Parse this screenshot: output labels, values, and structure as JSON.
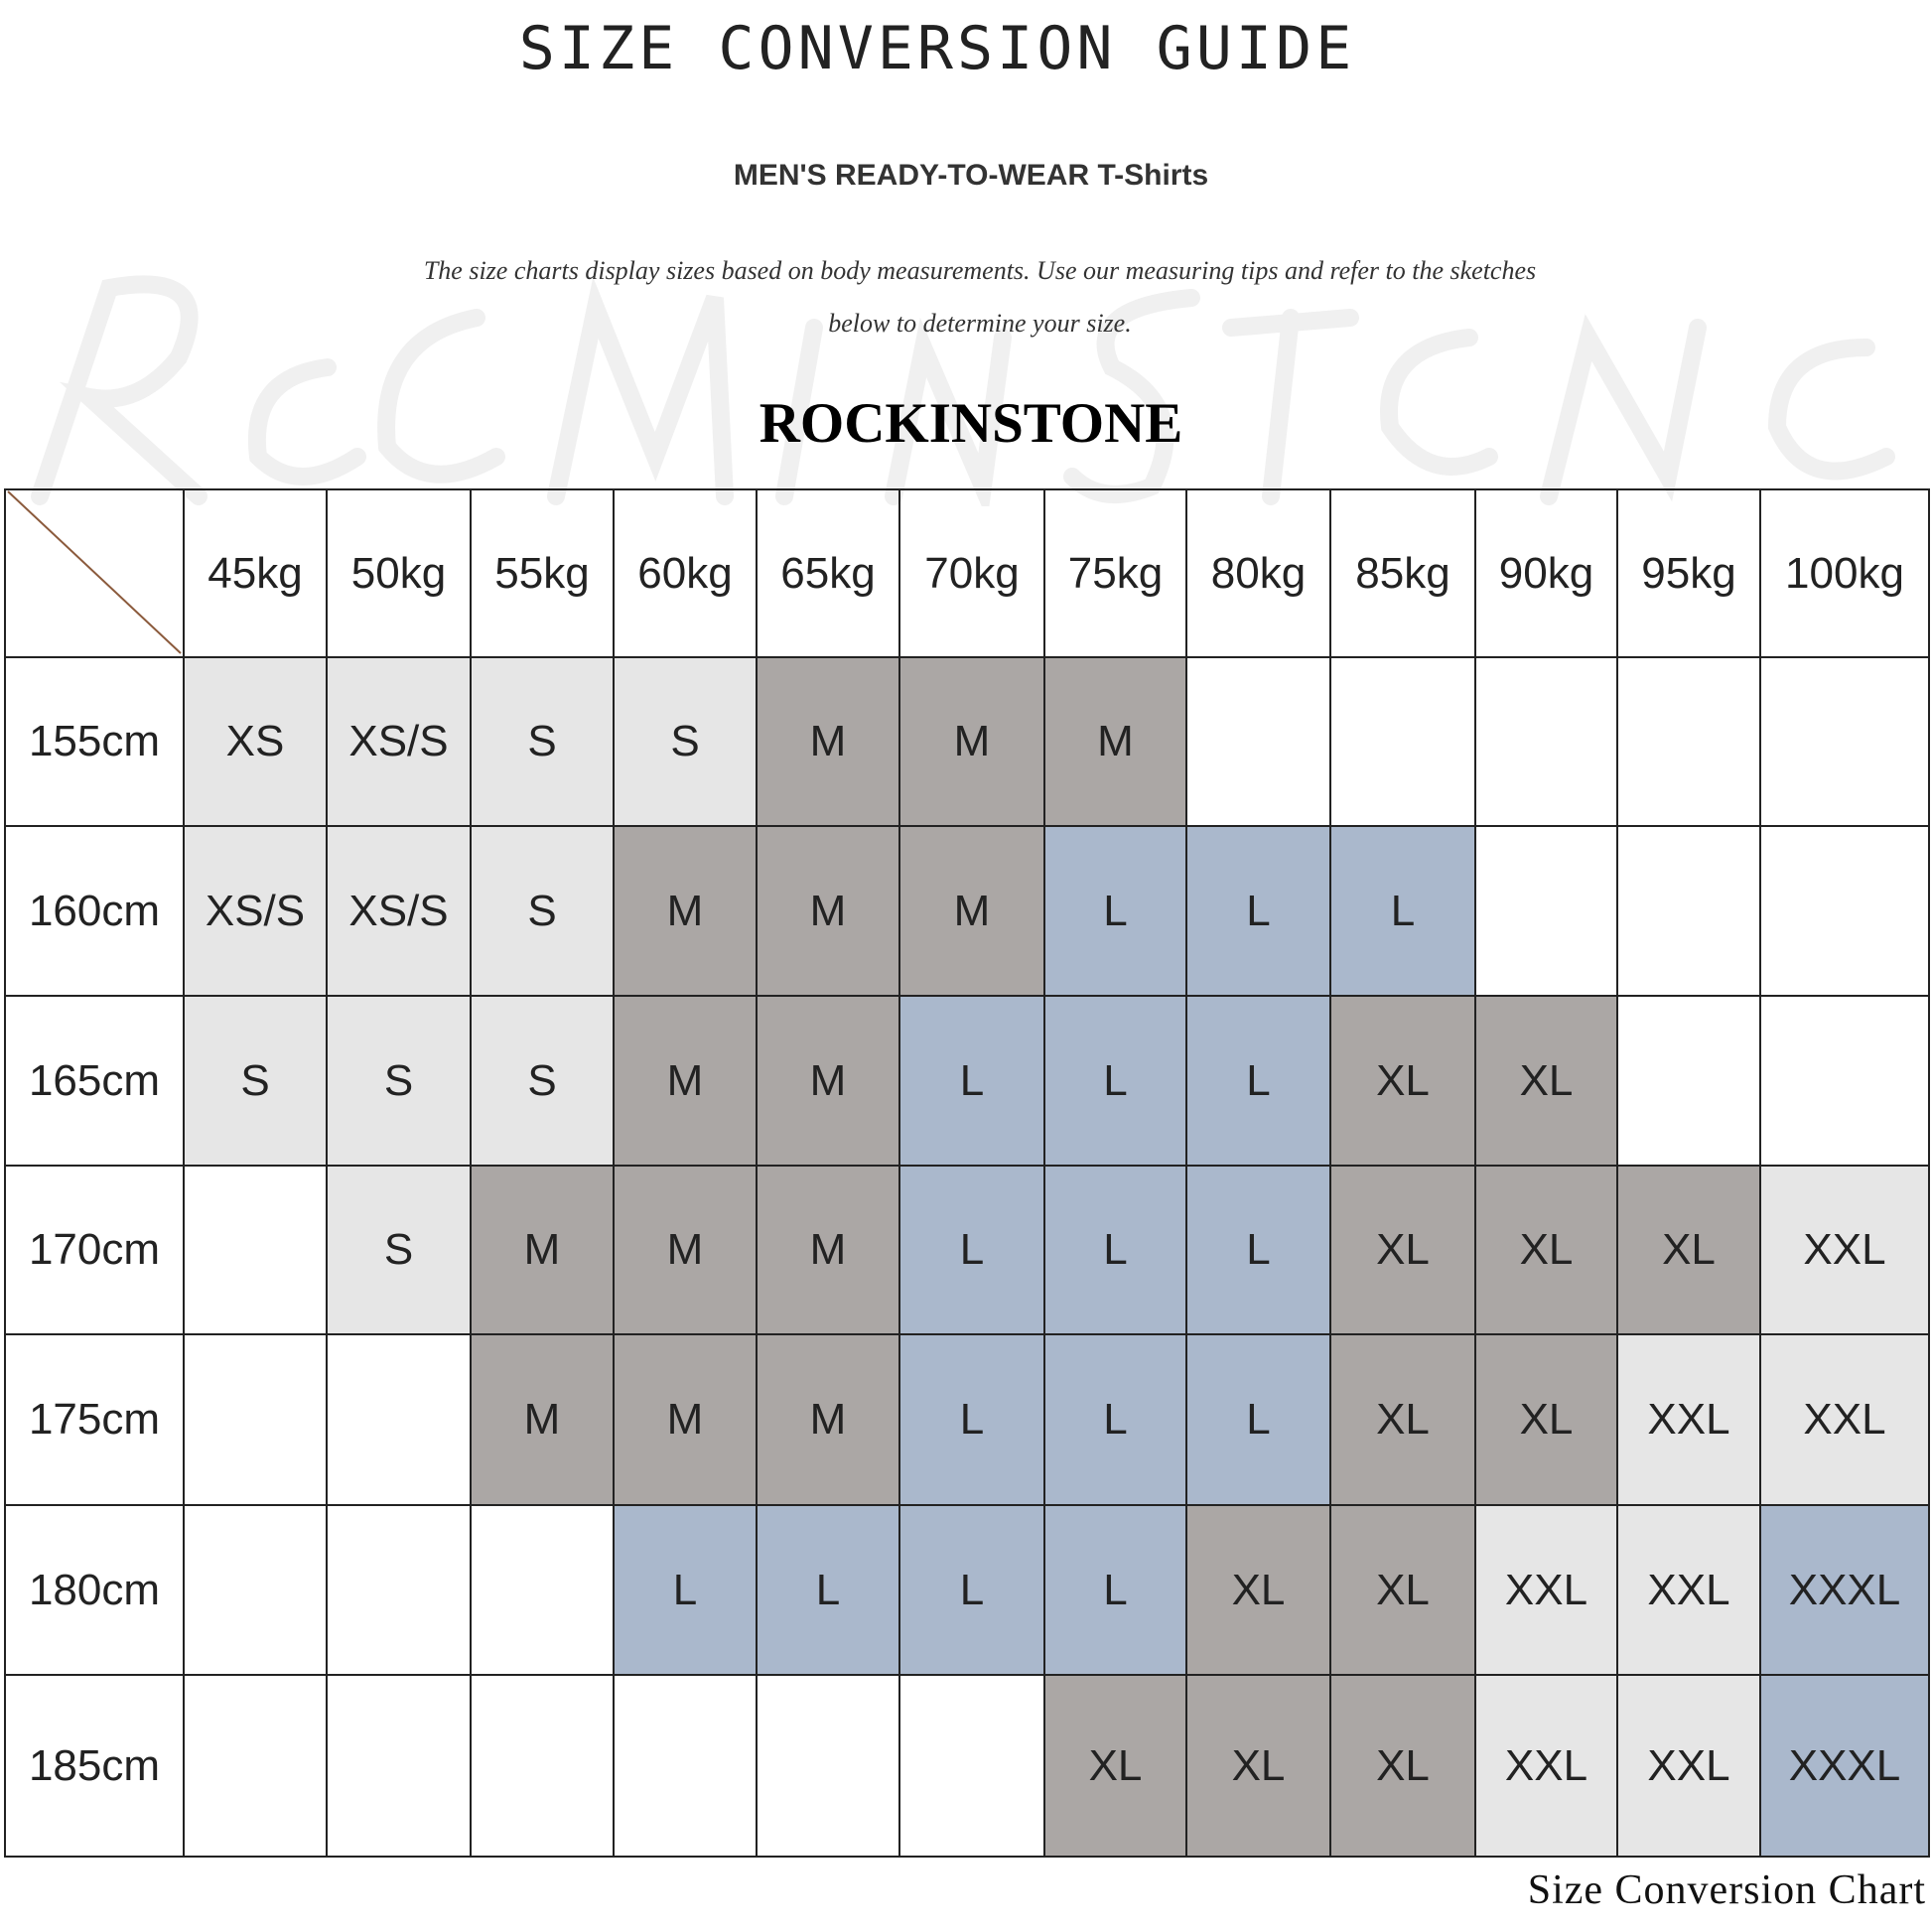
{
  "title": "SIZE CONVERSION GUIDE",
  "subtitle": "MEN'S READY-TO-WEAR T-Shirts",
  "description": [
    "The size charts display sizes based on body measurements. Use our measuring tips and refer to the sketches",
    "below to determine your size."
  ],
  "brand": "ROCKINSTONE",
  "watermark": "ROCKINSTONE",
  "footer": "Size Conversion Chart",
  "colors": {
    "XS": "#e6e6e6",
    "XS/S": "#e6e6e6",
    "S": "#e6e6e6",
    "M": "#aba7a5",
    "L": "#aab8cc",
    "XL": "#aba7a5",
    "XXL": "#e6e6e6",
    "XXXL": "#aab8cc",
    "diagonal": "#8b5a3c"
  },
  "table": {
    "weights": [
      "45kg",
      "50kg",
      "55kg",
      "60kg",
      "65kg",
      "70kg",
      "75kg",
      "80kg",
      "85kg",
      "90kg",
      "95kg",
      "100kg"
    ],
    "rows": [
      {
        "height": "155cm",
        "sizes": [
          "XS",
          "XS/S",
          "S",
          "S",
          "M",
          "M",
          "M",
          "",
          "",
          "",
          "",
          ""
        ]
      },
      {
        "height": "160cm",
        "sizes": [
          "XS/S",
          "XS/S",
          "S",
          "M",
          "M",
          "M",
          "L",
          "L",
          "L",
          "",
          "",
          ""
        ]
      },
      {
        "height": "165cm",
        "sizes": [
          "S",
          "S",
          "S",
          "M",
          "M",
          "L",
          "L",
          "L",
          "XL",
          "XL",
          "",
          ""
        ]
      },
      {
        "height": "170cm",
        "sizes": [
          "",
          "S",
          "M",
          "M",
          "M",
          "L",
          "L",
          "L",
          "XL",
          "XL",
          "XL",
          "XXL"
        ]
      },
      {
        "height": "175cm",
        "sizes": [
          "",
          "",
          "M",
          "M",
          "M",
          "L",
          "L",
          "L",
          "XL",
          "XL",
          "XXL",
          "XXL"
        ]
      },
      {
        "height": "180cm",
        "sizes": [
          "",
          "",
          "",
          "L",
          "L",
          "L",
          "L",
          "XL",
          "XL",
          "XXL",
          "XXL",
          "XXXL"
        ]
      },
      {
        "height": "185cm",
        "sizes": [
          "",
          "",
          "",
          "",
          "",
          "",
          "XL",
          "XL",
          "XL",
          "XXL",
          "XXL",
          "XXXL"
        ]
      }
    ]
  }
}
